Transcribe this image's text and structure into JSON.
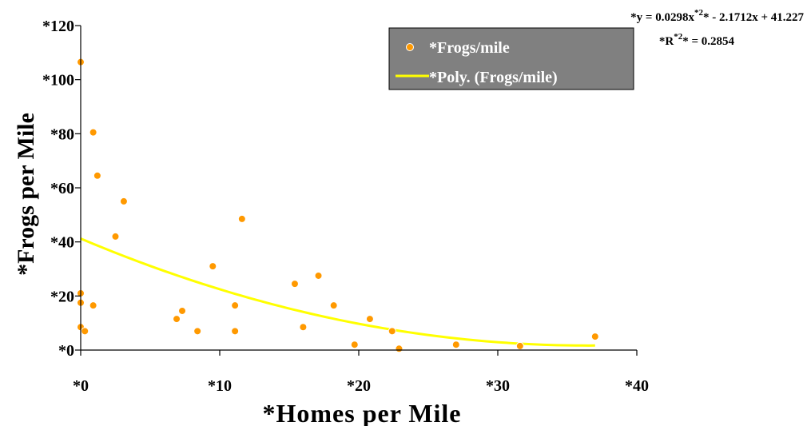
{
  "chart_data": {
    "type": "scatter",
    "title": "",
    "xlabel": "*Homes per Mile",
    "ylabel": "*Frogs per Mile",
    "xlim": [
      0,
      40
    ],
    "ylim": [
      0,
      120
    ],
    "x_ticks": [
      0,
      10,
      20,
      30,
      40
    ],
    "y_ticks": [
      0,
      20,
      40,
      60,
      80,
      100,
      120
    ],
    "x_tick_labels": [
      "*0",
      "*10",
      "*20",
      "*30",
      "*40"
    ],
    "y_tick_labels": [
      "*0",
      "*20",
      "*40",
      "*60",
      "*80",
      "*100",
      "*120"
    ],
    "grid": false,
    "legend_position": "top-right",
    "series": [
      {
        "name": "*Frogs/mile",
        "type": "scatter",
        "color": "#FF9900",
        "points": [
          [
            0,
            106.5
          ],
          [
            0,
            21
          ],
          [
            0,
            17.5
          ],
          [
            0,
            8.5
          ],
          [
            0.3,
            7
          ],
          [
            0.9,
            80.5
          ],
          [
            0.9,
            16.5
          ],
          [
            1.2,
            64.5
          ],
          [
            2.5,
            42
          ],
          [
            3.1,
            55
          ],
          [
            6.9,
            11.5
          ],
          [
            7.3,
            14.5
          ],
          [
            8.4,
            7
          ],
          [
            9.5,
            31
          ],
          [
            11.1,
            16.5
          ],
          [
            11.1,
            7
          ],
          [
            11.6,
            48.5
          ],
          [
            15.4,
            24.5
          ],
          [
            16,
            8.5
          ],
          [
            17.1,
            27.5
          ],
          [
            18.2,
            16.5
          ],
          [
            19.7,
            2
          ],
          [
            20.8,
            11.5
          ],
          [
            22.4,
            7
          ],
          [
            22.9,
            0.5
          ],
          [
            27,
            2
          ],
          [
            31.6,
            1.5
          ],
          [
            37,
            5
          ]
        ]
      },
      {
        "name": "*Poly. (Frogs/mile)",
        "type": "trendline",
        "color": "#FFFF00",
        "fit": "polynomial",
        "order": 2,
        "coefficients": [
          0.0298,
          -2.1712,
          41.227
        ],
        "x_range": [
          0,
          37
        ]
      }
    ],
    "annotations": {
      "equation_prefix": "*y = 0.0298x",
      "equation_sup": "*2",
      "equation_suffix": "* - 2.1712x + 41.227",
      "r2_prefix": "*R",
      "r2_sup": "*2",
      "r2_suffix": "* = 0.2854"
    },
    "legend_background": "#808080"
  }
}
